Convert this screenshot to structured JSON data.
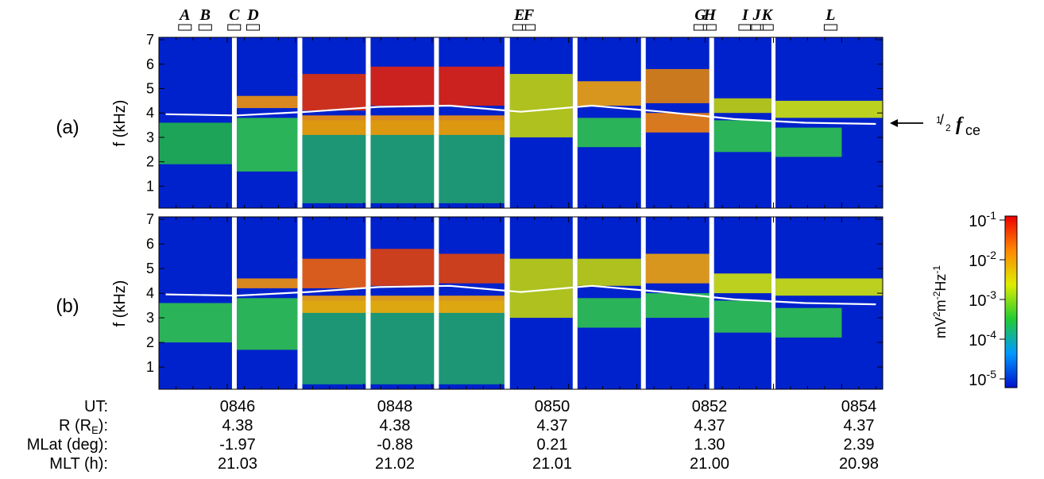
{
  "figure": {
    "panel_labels": [
      "(a)",
      "(b)"
    ],
    "fce_label": {
      "prefix_sup": "1",
      "prefix_sub": "2",
      "main": "f",
      "sub": "ce"
    }
  },
  "chart_data": {
    "type": "heatmap",
    "panels": [
      {
        "label": "(a)",
        "ylabel": "f (kHz)"
      },
      {
        "label": "(b)",
        "ylabel": "f (kHz)"
      }
    ],
    "y_ticks": [
      "1",
      "2",
      "3",
      "4",
      "5",
      "6",
      "7"
    ],
    "ylim": [
      0.1,
      7.1
    ],
    "x_range_ut_min": [
      0,
      10.6
    ],
    "time_labels": {
      "row_titles": [
        "UT:",
        "R (R",
        "E",
        "):",
        "MLat (deg):",
        "MLT (h):"
      ],
      "ut": [
        "0846",
        "0848",
        "0850",
        "0852",
        "0854"
      ],
      "r": [
        "4.38",
        "4.38",
        "4.37",
        "4.37",
        "4.37"
      ],
      "mlat": [
        "-1.97",
        "-0.88",
        "0.21",
        "1.30",
        "2.39"
      ],
      "mlt": [
        "21.03",
        "21.02",
        "21.01",
        "21.00",
        "20.98"
      ]
    },
    "event_markers": [
      "A",
      "B",
      "C",
      "D",
      "E",
      "F",
      "G",
      "H",
      "I",
      "J",
      "K",
      "L"
    ],
    "colorbar": {
      "unit_label": "mV2m-2Hz-1",
      "scale": "log",
      "tick_exponents": [
        "-1",
        "-2",
        "-3",
        "-4",
        "-5"
      ],
      "tick_base": "10",
      "range": [
        4e-06,
        0.1
      ]
    },
    "half_fce_khz": [
      3.95,
      3.9,
      4.05,
      4.25,
      4.3,
      4.05,
      4.3,
      4.05,
      3.75,
      3.6,
      3.55
    ],
    "colors": {
      "low": "#0033cc",
      "high": "#cc0000",
      "gap": "#ffffff",
      "line": "#ffffff"
    }
  }
}
